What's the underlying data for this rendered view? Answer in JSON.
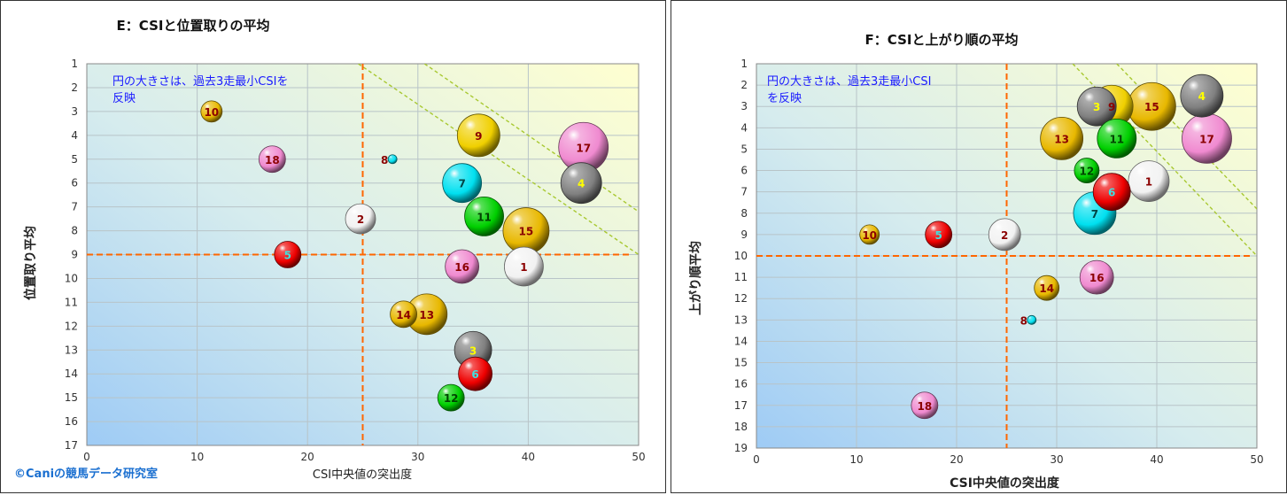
{
  "panels": [
    {
      "title": "E：CSIと位置取りの平均",
      "note_lines": [
        "円の大きさは、過去3走最小CSIを",
        "反映"
      ],
      "copyright": "©Caniの競馬データ研究室",
      "copyright_color": "#1a6fd0"
    },
    {
      "title": "F：CSIと上がり順の平均",
      "note_lines": [
        "円の大きさは、過去3走最小CSI",
        "を反映"
      ]
    }
  ],
  "colors": {
    "yellow": "#f0d000",
    "gold": "#e8b800",
    "pink": "#f08ad0",
    "white": "#f2f2f2",
    "cyan": "#00e0f0",
    "red": "#ee0000",
    "green": "#00d000",
    "gray": "#808080",
    "bg_top_right": "#ffffd0",
    "bg_bottom_left": "#9ecbf5",
    "ref_line": "#ff6600",
    "diag_line": "#a8c830",
    "note_text": "#1a1aff"
  },
  "chart_data": [
    {
      "type": "scatter",
      "title": "E：CSIと位置取りの平均",
      "xlabel": "CSI中央値の突出度",
      "ylabel": "位置取り平均",
      "xlim": [
        0,
        50
      ],
      "ylim": [
        1,
        17
      ],
      "y_inverted": true,
      "x_ticks": [
        0,
        10,
        20,
        30,
        40,
        50
      ],
      "y_ticks": [
        1,
        2,
        3,
        4,
        5,
        6,
        7,
        8,
        9,
        10,
        11,
        12,
        13,
        14,
        15,
        16,
        17
      ],
      "ref_lines": {
        "x": 25,
        "y": 9
      },
      "diag_lines": [
        {
          "from": [
            24.6,
            1
          ],
          "to": [
            50,
            9
          ]
        },
        {
          "from": [
            30.6,
            1
          ],
          "to": [
            50,
            7.2
          ]
        }
      ],
      "points": [
        {
          "label": "1",
          "x": 39.6,
          "y": 9.5,
          "size": 22,
          "color": "white",
          "label_color": "#8b0000"
        },
        {
          "label": "2",
          "x": 24.8,
          "y": 7.5,
          "size": 17,
          "color": "white",
          "label_color": "#8b0000"
        },
        {
          "label": "3",
          "x": 35.0,
          "y": 13.0,
          "size": 21,
          "color": "gray",
          "label_color": "#ffff00"
        },
        {
          "label": "4",
          "x": 44.8,
          "y": 6.0,
          "size": 23,
          "color": "gray",
          "label_color": "#ffff00"
        },
        {
          "label": "5",
          "x": 18.2,
          "y": 9.0,
          "size": 15,
          "color": "red",
          "label_color": "#40e0e0"
        },
        {
          "label": "6",
          "x": 35.2,
          "y": 14.0,
          "size": 19,
          "color": "red",
          "label_color": "#40e0e0"
        },
        {
          "label": "7",
          "x": 34.0,
          "y": 6.0,
          "size": 22,
          "color": "cyan",
          "label_color": "#004444"
        },
        {
          "label": "8",
          "x": 27.7,
          "y": 5.0,
          "size": 5,
          "color": "cyan",
          "label_color": "#8b0000"
        },
        {
          "label": "9",
          "x": 35.5,
          "y": 4.0,
          "size": 24,
          "color": "yellow",
          "label_color": "#8b0000"
        },
        {
          "label": "10",
          "x": 11.3,
          "y": 3.0,
          "size": 12,
          "color": "gold",
          "label_color": "#8b0000"
        },
        {
          "label": "11",
          "x": 36.0,
          "y": 7.4,
          "size": 22,
          "color": "green",
          "label_color": "#004400"
        },
        {
          "label": "12",
          "x": 33.0,
          "y": 15.0,
          "size": 15,
          "color": "green",
          "label_color": "#004400"
        },
        {
          "label": "13",
          "x": 30.8,
          "y": 11.5,
          "size": 23,
          "color": "gold",
          "label_color": "#8b0000"
        },
        {
          "label": "14",
          "x": 28.7,
          "y": 11.5,
          "size": 15,
          "color": "gold",
          "label_color": "#8b0000"
        },
        {
          "label": "15",
          "x": 39.8,
          "y": 8.0,
          "size": 26,
          "color": "gold",
          "label_color": "#8b0000"
        },
        {
          "label": "16",
          "x": 34.0,
          "y": 9.5,
          "size": 19,
          "color": "pink",
          "label_color": "#8b0000"
        },
        {
          "label": "17",
          "x": 45.0,
          "y": 4.5,
          "size": 28,
          "color": "pink",
          "label_color": "#8b0000"
        },
        {
          "label": "18",
          "x": 16.8,
          "y": 5.0,
          "size": 15,
          "color": "pink",
          "label_color": "#8b0000"
        }
      ]
    },
    {
      "type": "scatter",
      "title": "F：CSIと上がり順の平均",
      "xlabel": "CSI中央値の突出度",
      "ylabel": "上がり順平均",
      "xlim": [
        0,
        50
      ],
      "ylim": [
        1,
        19
      ],
      "y_inverted": true,
      "x_ticks": [
        0,
        10,
        20,
        30,
        40,
        50
      ],
      "y_ticks": [
        1,
        2,
        3,
        4,
        5,
        6,
        7,
        8,
        9,
        10,
        11,
        12,
        13,
        14,
        15,
        16,
        17,
        18,
        19
      ],
      "ref_lines": {
        "x": 25,
        "y": 10
      },
      "diag_lines": [
        {
          "from": [
            31.6,
            1
          ],
          "to": [
            50,
            10
          ]
        },
        {
          "from": [
            36.0,
            1
          ],
          "to": [
            50,
            7.8
          ]
        }
      ],
      "points": [
        {
          "label": "1",
          "x": 39.2,
          "y": 6.5,
          "size": 23,
          "color": "white",
          "label_color": "#8b0000"
        },
        {
          "label": "2",
          "x": 24.8,
          "y": 9.0,
          "size": 18,
          "color": "white",
          "label_color": "#8b0000"
        },
        {
          "label": "3",
          "x": 34.0,
          "y": 3.0,
          "size": 22,
          "color": "gray",
          "label_color": "#ffff00"
        },
        {
          "label": "4",
          "x": 44.5,
          "y": 2.5,
          "size": 24,
          "color": "gray",
          "label_color": "#ffff00"
        },
        {
          "label": "5",
          "x": 18.2,
          "y": 9.0,
          "size": 15,
          "color": "red",
          "label_color": "#40e0e0"
        },
        {
          "label": "6",
          "x": 35.5,
          "y": 7.0,
          "size": 21,
          "color": "red",
          "label_color": "#40e0e0"
        },
        {
          "label": "7",
          "x": 33.8,
          "y": 8.0,
          "size": 24,
          "color": "cyan",
          "label_color": "#004444"
        },
        {
          "label": "8",
          "x": 27.5,
          "y": 13.0,
          "size": 5,
          "color": "cyan",
          "label_color": "#8b0000"
        },
        {
          "label": "9",
          "x": 35.5,
          "y": 3.0,
          "size": 24,
          "color": "yellow",
          "label_color": "#8b0000"
        },
        {
          "label": "10",
          "x": 11.3,
          "y": 9.0,
          "size": 11,
          "color": "gold",
          "label_color": "#8b0000"
        },
        {
          "label": "11",
          "x": 36.0,
          "y": 4.5,
          "size": 22,
          "color": "green",
          "label_color": "#004400"
        },
        {
          "label": "12",
          "x": 33.0,
          "y": 6.0,
          "size": 14,
          "color": "green",
          "label_color": "#004400"
        },
        {
          "label": "13",
          "x": 30.5,
          "y": 4.5,
          "size": 24,
          "color": "gold",
          "label_color": "#8b0000"
        },
        {
          "label": "14",
          "x": 29.0,
          "y": 11.5,
          "size": 14,
          "color": "gold",
          "label_color": "#8b0000"
        },
        {
          "label": "15",
          "x": 39.5,
          "y": 3.0,
          "size": 27,
          "color": "gold",
          "label_color": "#8b0000"
        },
        {
          "label": "16",
          "x": 34.0,
          "y": 11.0,
          "size": 19,
          "color": "pink",
          "label_color": "#8b0000"
        },
        {
          "label": "17",
          "x": 45.0,
          "y": 4.5,
          "size": 28,
          "color": "pink",
          "label_color": "#8b0000"
        },
        {
          "label": "18",
          "x": 16.8,
          "y": 17.0,
          "size": 15,
          "color": "pink",
          "label_color": "#8b0000"
        }
      ]
    }
  ]
}
